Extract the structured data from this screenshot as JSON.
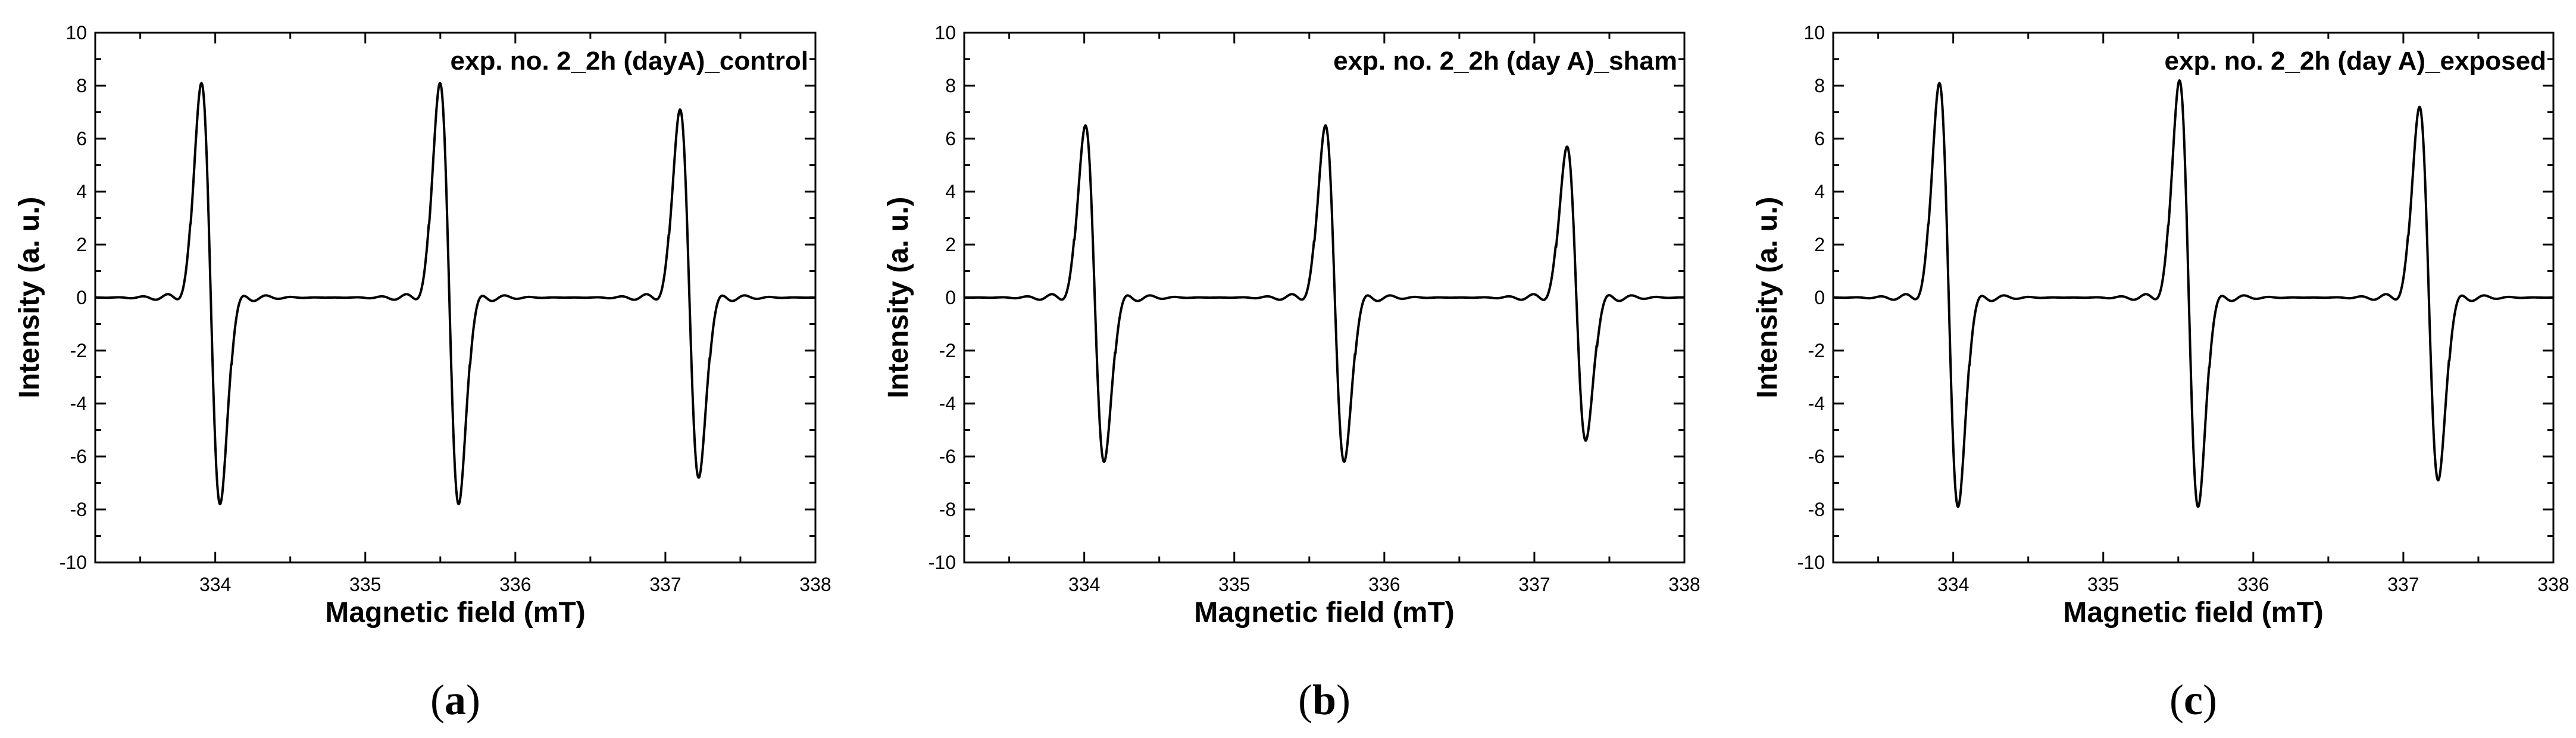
{
  "chart_data": [
    {
      "type": "line",
      "panel_label": "(a)",
      "title": "exp. no. 2_2h (dayA)_control",
      "xlabel": "Magnetic field (mT)",
      "ylabel": "Intensity (a. u.)",
      "xlim": [
        333.2,
        338
      ],
      "ylim": [
        -10,
        10
      ],
      "xticks": [
        334,
        335,
        336,
        337,
        338
      ],
      "yticks": [
        -10,
        -8,
        -6,
        -4,
        -2,
        0,
        2,
        4,
        6,
        8,
        10
      ],
      "legend": "none",
      "grid": false,
      "peaks": [
        {
          "center": 333.97,
          "max": 8.1,
          "min": -7.8
        },
        {
          "center": 335.56,
          "max": 8.1,
          "min": -7.8
        },
        {
          "center": 337.16,
          "max": 7.1,
          "min": -6.8
        }
      ]
    },
    {
      "type": "line",
      "panel_label": "(b)",
      "title": "exp. no. 2_2h (day A)_sham",
      "xlabel": "Magnetic field (mT)",
      "ylabel": "Intensity (a. u.)",
      "xlim": [
        333.2,
        338
      ],
      "ylim": [
        -10,
        10
      ],
      "xticks": [
        334,
        335,
        336,
        337,
        338
      ],
      "yticks": [
        -10,
        -8,
        -6,
        -4,
        -2,
        0,
        2,
        4,
        6,
        8,
        10
      ],
      "legend": "none",
      "grid": false,
      "peaks": [
        {
          "center": 334.07,
          "max": 6.5,
          "min": -6.2
        },
        {
          "center": 335.67,
          "max": 6.5,
          "min": -6.2
        },
        {
          "center": 337.28,
          "max": 5.7,
          "min": -5.4
        }
      ]
    },
    {
      "type": "line",
      "panel_label": "(c)",
      "title": "exp. no. 2_2h (day A)_exposed",
      "xlabel": "Magnetic field (mT)",
      "ylabel": "Intensity (a. u.)",
      "xlim": [
        333.2,
        338
      ],
      "ylim": [
        -10,
        10
      ],
      "xticks": [
        334,
        335,
        336,
        337,
        338
      ],
      "yticks": [
        -10,
        -8,
        -6,
        -4,
        -2,
        0,
        2,
        4,
        6,
        8,
        10
      ],
      "legend": "none",
      "grid": false,
      "peaks": [
        {
          "center": 333.97,
          "max": 8.1,
          "min": -7.9
        },
        {
          "center": 335.57,
          "max": 8.2,
          "min": -7.9
        },
        {
          "center": 337.17,
          "max": 7.2,
          "min": -6.9
        }
      ]
    }
  ]
}
